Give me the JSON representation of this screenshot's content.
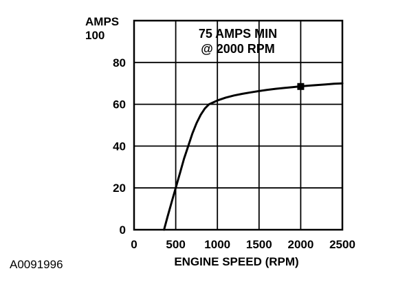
{
  "figure_id": "A0091996",
  "chart_data": {
    "type": "line",
    "title": "",
    "xlabel": "ENGINE SPEED (RPM)",
    "ylabel": "AMPS",
    "xlim": [
      0,
      2500
    ],
    "ylim": [
      0,
      100
    ],
    "x_ticks": [
      0,
      500,
      1000,
      1500,
      2000,
      2500
    ],
    "y_ticks": [
      0,
      20,
      40,
      60,
      80,
      100
    ],
    "grid": true,
    "annotations": [
      "75 AMPS MIN",
      "@ 2000 RPM"
    ],
    "series": [
      {
        "x": [
          360,
          400,
          450,
          500,
          550,
          600,
          650,
          700,
          750,
          800,
          850,
          900,
          1000,
          1100,
          1200,
          1300,
          1400,
          1500,
          1600,
          1700,
          1800,
          1900,
          2000,
          2100,
          2200,
          2300,
          2400,
          2500
        ],
        "values": [
          0,
          6,
          13,
          20,
          27,
          34,
          40,
          46,
          51,
          55,
          58,
          60,
          61.8,
          63.2,
          64.2,
          65,
          65.7,
          66.3,
          66.9,
          67.4,
          67.8,
          68.2,
          68.6,
          68.9,
          69.2,
          69.5,
          69.8,
          70
        ]
      }
    ],
    "marker": {
      "x": 2000,
      "y": 68.5
    },
    "colors": {
      "line": "#000000",
      "grid": "#000000",
      "background": "#ffffff"
    }
  }
}
